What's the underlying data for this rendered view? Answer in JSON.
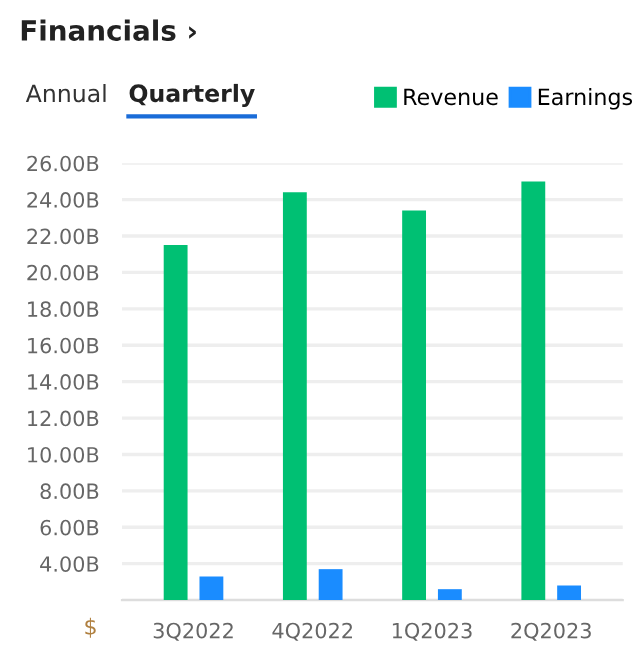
{
  "chart_data": {
    "type": "bar",
    "title": "Financials ›",
    "annotations": [
      "Annual",
      "Quarterly",
      "$"
    ],
    "categories": [
      "3Q2022",
      "4Q2022",
      "1Q2023",
      "2Q2023"
    ],
    "series": [
      {
        "name": "Revenue",
        "color": "#00c073",
        "values": [
          21.5,
          24.4,
          23.4,
          25.0
        ]
      },
      {
        "name": "Earnings",
        "color": "#1a8cff",
        "values": [
          3.3,
          3.7,
          2.6,
          2.8
        ]
      }
    ],
    "ylim": [
      2,
      26
    ],
    "yticks": [
      {
        "value": 2,
        "label": null
      },
      {
        "value": 4,
        "label": "4.00B"
      },
      {
        "value": 6,
        "label": "6.00B"
      },
      {
        "value": 8,
        "label": "8.00B"
      },
      {
        "value": 10,
        "label": "10.00B"
      },
      {
        "value": 12,
        "label": "12.00B"
      },
      {
        "value": 14,
        "label": "14.00B"
      },
      {
        "value": 16,
        "label": "16.00B"
      },
      {
        "value": 18,
        "label": "18.00B"
      },
      {
        "value": 20,
        "label": "20.00B"
      },
      {
        "value": 22,
        "label": "22.00B"
      },
      {
        "value": 24,
        "label": "24.00B"
      },
      {
        "value": 26,
        "label": "26.00B"
      }
    ],
    "grid": "y",
    "legend": "top right"
  }
}
